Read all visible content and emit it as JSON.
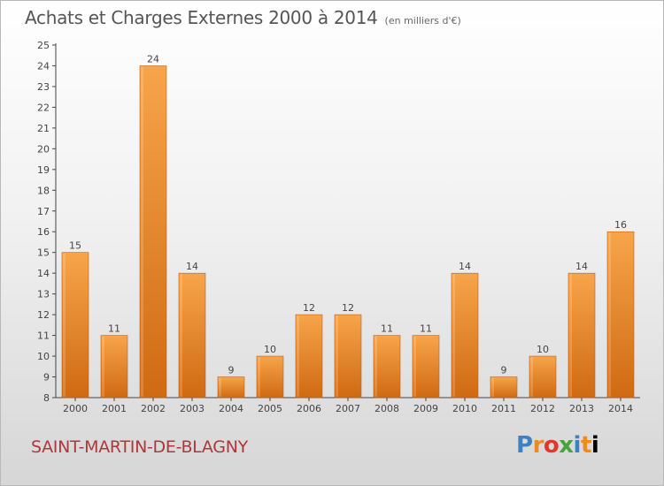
{
  "header": {
    "title": "Achats et Charges Externes 2000 à 2014",
    "unit": "(en milliers d'€)"
  },
  "footer": {
    "commune": "SAINT-MARTIN-DE-BLAGNY",
    "logo": "Proxiti"
  },
  "chart_data": {
    "type": "bar",
    "title": "Achats et Charges Externes 2000 à 2014",
    "subtitle": "(en milliers d'€)",
    "categories": [
      "2000",
      "2001",
      "2002",
      "2003",
      "2004",
      "2005",
      "2006",
      "2007",
      "2008",
      "2009",
      "2010",
      "2011",
      "2012",
      "2013",
      "2014"
    ],
    "values": [
      15,
      11,
      24,
      14,
      9,
      10,
      12,
      12,
      11,
      11,
      14,
      9,
      10,
      14,
      16
    ],
    "ylim": [
      8,
      25
    ],
    "yticks": [
      8,
      9,
      10,
      11,
      12,
      13,
      14,
      15,
      16,
      17,
      18,
      19,
      20,
      21,
      22,
      23,
      24,
      25
    ],
    "grid": false,
    "colors": {
      "bar_light": "#f7a54a",
      "bar_dark": "#cf6a12",
      "bar_edge": "#c0601a"
    }
  }
}
